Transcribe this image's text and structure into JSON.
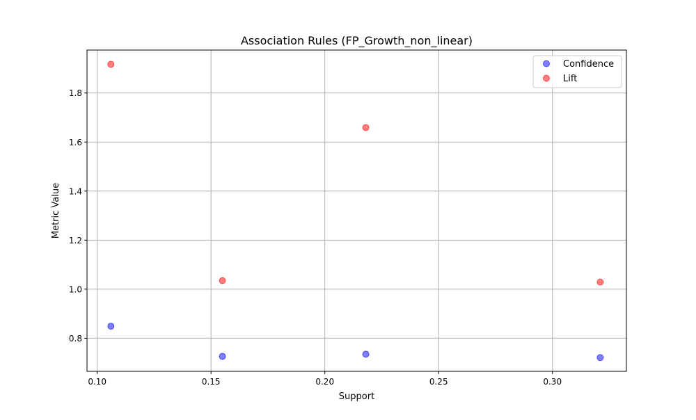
{
  "chart_data": {
    "type": "scatter",
    "title": "Association Rules (FP_Growth_non_linear)",
    "xlabel": "Support",
    "ylabel": "Metric Value",
    "xlim": [
      0.0955,
      0.3325
    ],
    "ylim": [
      0.665,
      1.975
    ],
    "xticks": [
      0.1,
      0.15,
      0.2,
      0.25,
      0.3
    ],
    "xtick_labels": [
      "0.10",
      "0.15",
      "0.20",
      "0.25",
      "0.30"
    ],
    "yticks": [
      0.8,
      1.0,
      1.2,
      1.4,
      1.6,
      1.8
    ],
    "ytick_labels": [
      "0.8",
      "1.0",
      "1.2",
      "1.4",
      "1.6",
      "1.8"
    ],
    "grid": true,
    "legend_position": "top-right",
    "series": [
      {
        "name": "Confidence",
        "color": "#0000ff",
        "x": [
          0.106,
          0.155,
          0.218,
          0.321
        ],
        "y": [
          0.849,
          0.726,
          0.735,
          0.721
        ]
      },
      {
        "name": "Lift",
        "color": "#ff0000",
        "x": [
          0.106,
          0.155,
          0.218,
          0.321
        ],
        "y": [
          1.917,
          1.035,
          1.659,
          1.029
        ]
      }
    ]
  }
}
